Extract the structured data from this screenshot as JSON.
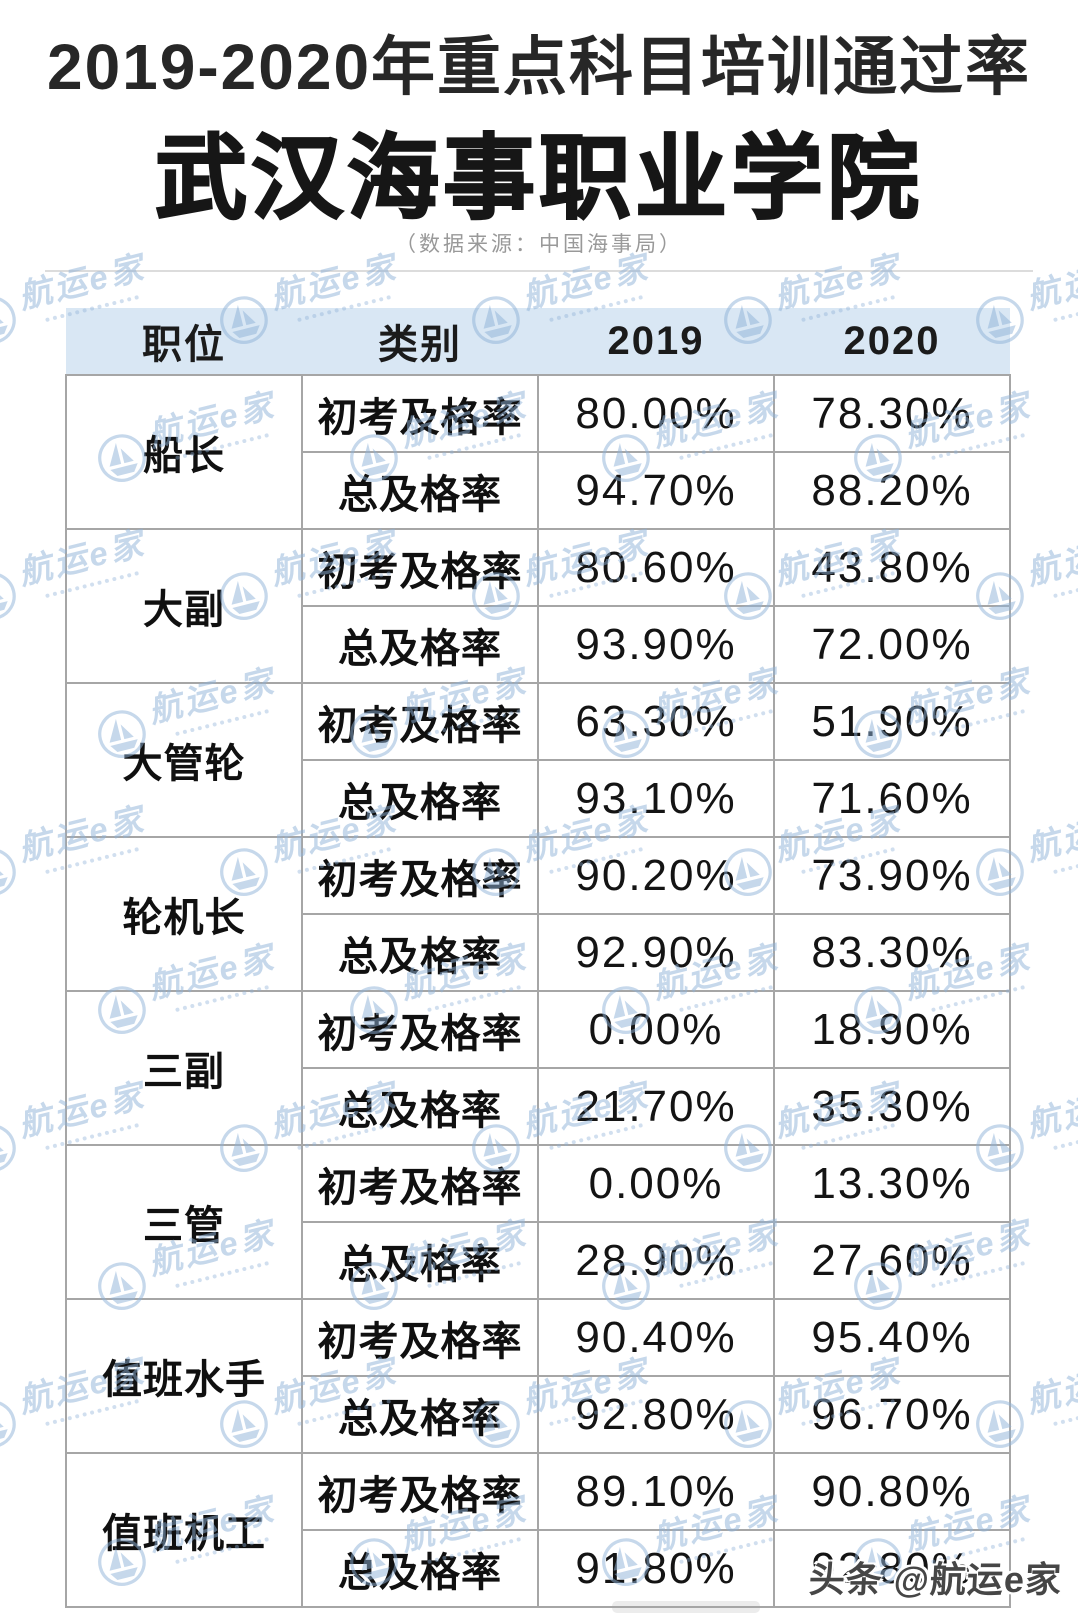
{
  "page": {
    "title_line1": "2019-2020年重点科目培训通过率",
    "title_line2": "武汉海事职业学院",
    "source_note": "（数据来源：中国海事局）",
    "credit": "头条 @航运e家",
    "watermark": {
      "text": "航运e家"
    }
  },
  "colors": {
    "header_bg": "#d9e7f4",
    "table_border": "#a6a6a6",
    "watermark_blue": "#8fb2d8",
    "title_text": "#161616",
    "source_text": "#999999",
    "credit_text": "#464646"
  },
  "table": {
    "headers": [
      "职位",
      "类别",
      "2019",
      "2020"
    ],
    "groups": [
      {
        "position": "船长",
        "rows": [
          {
            "category": "初考及格率",
            "y2019": "80.00%",
            "y2020": "78.30%"
          },
          {
            "category": "总及格率",
            "y2019": "94.70%",
            "y2020": "88.20%"
          }
        ]
      },
      {
        "position": "大副",
        "rows": [
          {
            "category": "初考及格率",
            "y2019": "80.60%",
            "y2020": "43.80%"
          },
          {
            "category": "总及格率",
            "y2019": "93.90%",
            "y2020": "72.00%"
          }
        ]
      },
      {
        "position": "大管轮",
        "rows": [
          {
            "category": "初考及格率",
            "y2019": "63.30%",
            "y2020": "51.90%"
          },
          {
            "category": "总及格率",
            "y2019": "93.10%",
            "y2020": "71.60%"
          }
        ]
      },
      {
        "position": "轮机长",
        "rows": [
          {
            "category": "初考及格率",
            "y2019": "90.20%",
            "y2020": "73.90%"
          },
          {
            "category": "总及格率",
            "y2019": "92.90%",
            "y2020": "83.30%"
          }
        ]
      },
      {
        "position": "三副",
        "rows": [
          {
            "category": "初考及格率",
            "y2019": "0.00%",
            "y2020": "18.90%"
          },
          {
            "category": "总及格率",
            "y2019": "21.70%",
            "y2020": "35.30%"
          }
        ]
      },
      {
        "position": "三管",
        "rows": [
          {
            "category": "初考及格率",
            "y2019": "0.00%",
            "y2020": "13.30%"
          },
          {
            "category": "总及格率",
            "y2019": "28.90%",
            "y2020": "27.60%"
          }
        ]
      },
      {
        "position": "值班水手",
        "rows": [
          {
            "category": "初考及格率",
            "y2019": "90.40%",
            "y2020": "95.40%"
          },
          {
            "category": "总及格率",
            "y2019": "92.80%",
            "y2020": "96.70%"
          }
        ]
      },
      {
        "position": "值班机工",
        "rows": [
          {
            "category": "初考及格率",
            "y2019": "89.10%",
            "y2020": "90.80%"
          },
          {
            "category": "总及格率",
            "y2019": "91.80%",
            "y2020": "92.80%"
          }
        ]
      }
    ]
  },
  "chart_data": {
    "type": "table",
    "title": "2019-2020年重点科目培训通过率",
    "subtitle": "武汉海事职业学院",
    "source": "（数据来源：中国海事局）",
    "columns": [
      "职位",
      "类别",
      "2019",
      "2020"
    ],
    "rows": [
      [
        "船长",
        "初考及格率",
        "80.00%",
        "78.30%"
      ],
      [
        "船长",
        "总及格率",
        "94.70%",
        "88.20%"
      ],
      [
        "大副",
        "初考及格率",
        "80.60%",
        "43.80%"
      ],
      [
        "大副",
        "总及格率",
        "93.90%",
        "72.00%"
      ],
      [
        "大管轮",
        "初考及格率",
        "63.30%",
        "51.90%"
      ],
      [
        "大管轮",
        "总及格率",
        "93.10%",
        "71.60%"
      ],
      [
        "轮机长",
        "初考及格率",
        "90.20%",
        "73.90%"
      ],
      [
        "轮机长",
        "总及格率",
        "92.90%",
        "83.30%"
      ],
      [
        "三副",
        "初考及格率",
        "0.00%",
        "18.90%"
      ],
      [
        "三副",
        "总及格率",
        "21.70%",
        "35.30%"
      ],
      [
        "三管",
        "初考及格率",
        "0.00%",
        "13.30%"
      ],
      [
        "三管",
        "总及格率",
        "28.90%",
        "27.60%"
      ],
      [
        "值班水手",
        "初考及格率",
        "90.40%",
        "95.40%"
      ],
      [
        "值班水手",
        "总及格率",
        "92.80%",
        "96.70%"
      ],
      [
        "值班机工",
        "初考及格率",
        "89.10%",
        "90.80%"
      ],
      [
        "值班机工",
        "总及格率",
        "91.80%",
        "92.80%"
      ]
    ]
  }
}
